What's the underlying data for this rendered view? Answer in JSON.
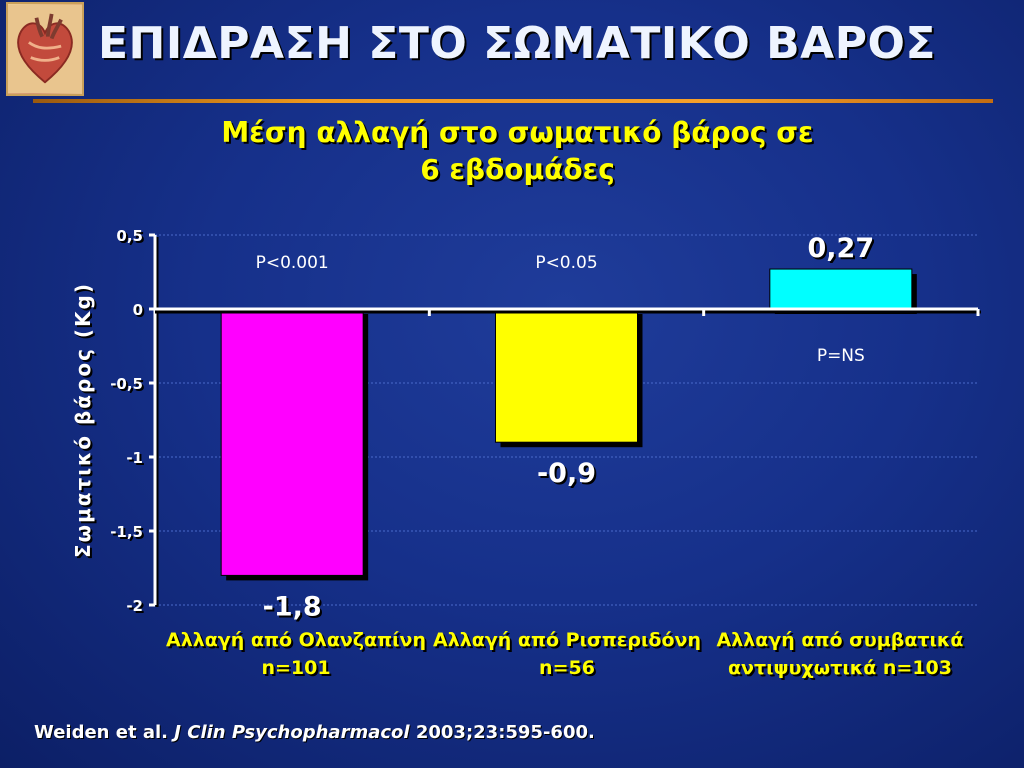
{
  "slide": {
    "title": "ΕΠΙΔΡΑΣΗ ΣΤΟ ΣΩΜΑΤΙΚΟ ΒΑΡΟΣ",
    "subtitle_line1": "Μέση αλλαγή στο σωματικό βάρος σε",
    "subtitle_line2": "6 εβδομάδες"
  },
  "citation": {
    "authors": "Weiden et al.",
    "journal": "J Clin Psychopharmacol",
    "ref": "2003;23:595-600."
  },
  "colors": {
    "bar_olanzapine": "#ff00ff",
    "bar_risperidone": "#ffff00",
    "bar_conventional": "#00ffff",
    "gridline": "#4a6acb",
    "axis": "#ffffff"
  },
  "chart_data": {
    "type": "bar",
    "title": "Μέση αλλαγή στο σωματικό βάρος σε 6 εβδομάδες",
    "ylabel": "Σωματικό βάρος (Kg)",
    "xlabel": "",
    "ylim": [
      -2,
      0.5
    ],
    "yticks": [
      0.5,
      0,
      -0.5,
      -1,
      -1.5,
      -2
    ],
    "ytick_labels": [
      "0,5",
      "0",
      "-0,5",
      "-1",
      "-1,5",
      "-2"
    ],
    "grid": true,
    "legend": "none",
    "categories": [
      {
        "line1": "Αλλαγή από Ολανζαπίνη",
        "line2": "n=101"
      },
      {
        "line1": "Αλλαγή από Ρισπεριδόνη",
        "line2": "n=56"
      },
      {
        "line1": "Αλλαγή από συμβατικά",
        "line2": "αντιψυχωτικά n=103"
      }
    ],
    "values": [
      -1.8,
      -0.9,
      0.27
    ],
    "value_labels": [
      "-1,8",
      "-0,9",
      "0,27"
    ],
    "pvalues": [
      "P<0.001",
      "P<0.05",
      "P=NS"
    ]
  }
}
